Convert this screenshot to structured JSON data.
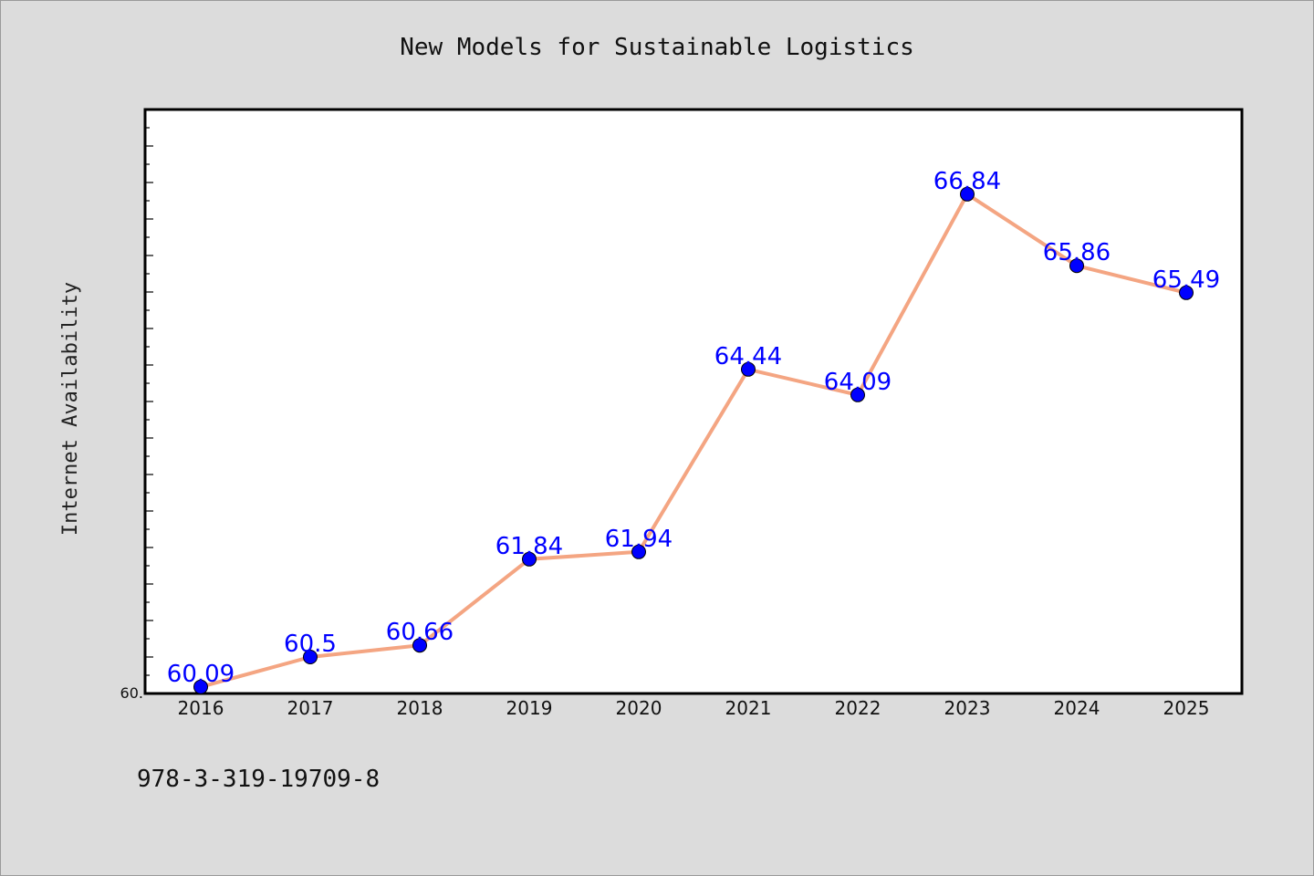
{
  "chart_data": {
    "type": "line",
    "title": "New Models for Sustainable Logistics",
    "xlabel": "",
    "ylabel": "Internet Availability",
    "categories": [
      "2016",
      "2017",
      "2018",
      "2019",
      "2020",
      "2021",
      "2022",
      "2023",
      "2024",
      "2025"
    ],
    "series": [
      {
        "values": [
          60.09,
          60.5,
          60.66,
          61.84,
          61.94,
          64.44,
          64.09,
          66.84,
          65.86,
          65.49
        ],
        "line_color": "#f4a582",
        "marker_color": "#0000ff"
      }
    ],
    "data_labels": [
      "60.09",
      "60.5",
      "60.66",
      "61.84",
      "61.94",
      "64.44",
      "64.09",
      "66.84",
      "65.86",
      "65.49"
    ],
    "ytick_labels": [
      "60."
    ],
    "ylim": [
      60.0,
      68.0
    ],
    "grid": false,
    "legend": "none"
  },
  "footer": {
    "isbn": "978-3-319-19709-8"
  }
}
